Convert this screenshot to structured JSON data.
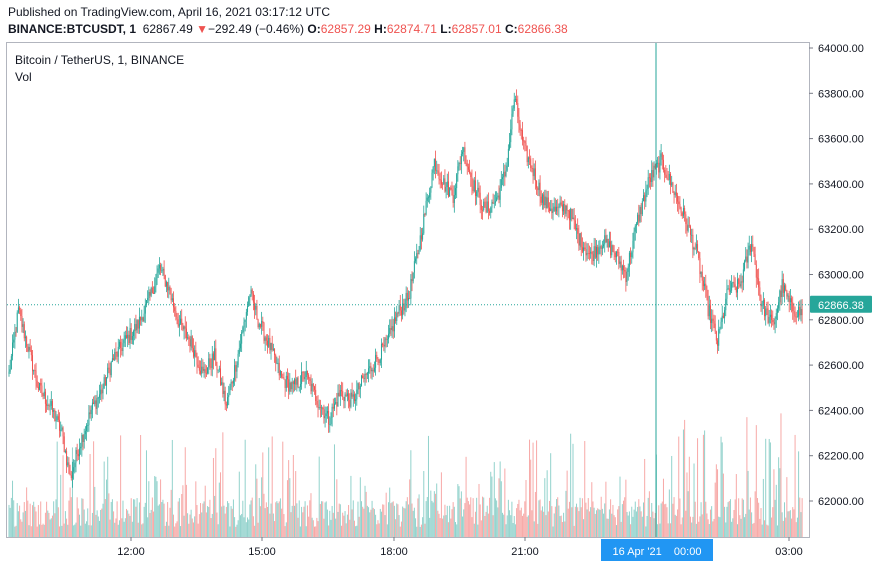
{
  "header": {
    "published": "Published on TradingView.com, April 16, 2021 03:17:12 UTC",
    "symbol": "BINANCE:BTCUSDT, 1",
    "last": "62867.49",
    "arrow": "▼",
    "change": "−292.49 (−0.46%)",
    "o_label": "O:",
    "o_value": "62857.29",
    "h_label": "H:",
    "h_value": "62874.71",
    "l_label": "L:",
    "l_value": "62857.01",
    "c_label": "C:",
    "c_value": "62866.38"
  },
  "legend": {
    "title": "Bitcoin / TetherUS, 1, BINANCE",
    "volume": "Vol"
  },
  "chart_data": {
    "type": "candlestick",
    "interval_minutes": 1,
    "y_axis": {
      "side": "right",
      "range": [
        61880,
        64020
      ],
      "ticks": [
        62000,
        62200,
        62400,
        62600,
        62800,
        63000,
        63200,
        63400,
        63600,
        63800,
        64000
      ],
      "tick_labels": [
        "62000.00",
        "62200.00",
        "62400.00",
        "62600.00",
        "62800.00",
        "63000.00",
        "63200.00",
        "63400.00",
        "63600.00",
        "63800.00",
        "64000.00"
      ]
    },
    "x_axis": {
      "ticks": [
        "12:00",
        "15:00",
        "18:00",
        "21:00",
        "03:00"
      ],
      "crosshair_label": "16 Apr '21    00:00"
    },
    "last_price": {
      "value": 62866.38,
      "label": "62866.38",
      "color": "#26a69a"
    },
    "up_color": "#26a69a",
    "down_color": "#ef5350",
    "price_path": [
      [
        0,
        62560
      ],
      [
        8,
        62840
      ],
      [
        15,
        62700
      ],
      [
        25,
        62500
      ],
      [
        35,
        62420
      ],
      [
        45,
        62300
      ],
      [
        52,
        62100
      ],
      [
        60,
        62250
      ],
      [
        70,
        62400
      ],
      [
        80,
        62500
      ],
      [
        88,
        62620
      ],
      [
        98,
        62700
      ],
      [
        110,
        62780
      ],
      [
        120,
        62900
      ],
      [
        128,
        63030
      ],
      [
        135,
        62950
      ],
      [
        145,
        62780
      ],
      [
        155,
        62700
      ],
      [
        165,
        62560
      ],
      [
        175,
        62640
      ],
      [
        185,
        62420
      ],
      [
        195,
        62650
      ],
      [
        205,
        62920
      ],
      [
        212,
        62800
      ],
      [
        222,
        62680
      ],
      [
        232,
        62540
      ],
      [
        242,
        62500
      ],
      [
        252,
        62560
      ],
      [
        262,
        62450
      ],
      [
        272,
        62360
      ],
      [
        282,
        62480
      ],
      [
        292,
        62440
      ],
      [
        302,
        62540
      ],
      [
        312,
        62620
      ],
      [
        322,
        62700
      ],
      [
        330,
        62820
      ],
      [
        340,
        62900
      ],
      [
        348,
        63100
      ],
      [
        355,
        63300
      ],
      [
        362,
        63500
      ],
      [
        370,
        63400
      ],
      [
        378,
        63350
      ],
      [
        386,
        63560
      ],
      [
        395,
        63400
      ],
      [
        405,
        63280
      ],
      [
        415,
        63330
      ],
      [
        423,
        63460
      ],
      [
        430,
        63780
      ],
      [
        438,
        63560
      ],
      [
        446,
        63460
      ],
      [
        455,
        63320
      ],
      [
        465,
        63280
      ],
      [
        475,
        63300
      ],
      [
        485,
        63160
      ],
      [
        495,
        63080
      ],
      [
        505,
        63150
      ],
      [
        515,
        63100
      ],
      [
        525,
        63000
      ],
      [
        535,
        63240
      ],
      [
        545,
        63420
      ],
      [
        555,
        63500
      ],
      [
        565,
        63380
      ],
      [
        575,
        63250
      ],
      [
        585,
        63100
      ],
      [
        595,
        62850
      ],
      [
        603,
        62700
      ],
      [
        612,
        62930
      ],
      [
        622,
        62950
      ],
      [
        632,
        63150
      ],
      [
        640,
        62880
      ],
      [
        650,
        62770
      ],
      [
        658,
        62950
      ],
      [
        666,
        62850
      ],
      [
        675,
        62830
      ]
    ],
    "volume": {
      "scale_max_px": 124,
      "typical_px": [
        10,
        60
      ],
      "spike_px": [
        55,
        124
      ]
    }
  }
}
